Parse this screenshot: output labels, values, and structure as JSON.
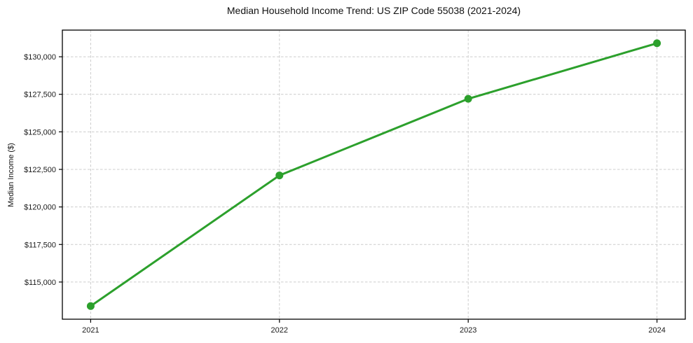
{
  "chart_data": {
    "type": "line",
    "title": "Median Household Income Trend: US ZIP Code 55038 (2021-2024)",
    "xlabel": "",
    "ylabel": "Median Income ($)",
    "x": [
      2021,
      2022,
      2023,
      2024
    ],
    "x_tick_labels": [
      "2021",
      "2022",
      "2023",
      "2024"
    ],
    "values": [
      113400,
      122100,
      127200,
      130900
    ],
    "y_ticks": [
      115000,
      117500,
      120000,
      122500,
      125000,
      127500,
      130000
    ],
    "y_tick_labels": [
      "$115,000",
      "$117,500",
      "$120,000",
      "$122,500",
      "$125,000",
      "$127,500",
      "$130,000"
    ],
    "xlim": [
      2020.85,
      2024.15
    ],
    "ylim": [
      112525,
      131775
    ],
    "grid": true,
    "grid_style": "dashed",
    "legend": "none",
    "line_color": "#2ca02c",
    "marker": "circle",
    "grid_color": "#cccccc",
    "axis_color": "#000000",
    "text_color": "#1a1a1a",
    "background": "#ffffff"
  }
}
